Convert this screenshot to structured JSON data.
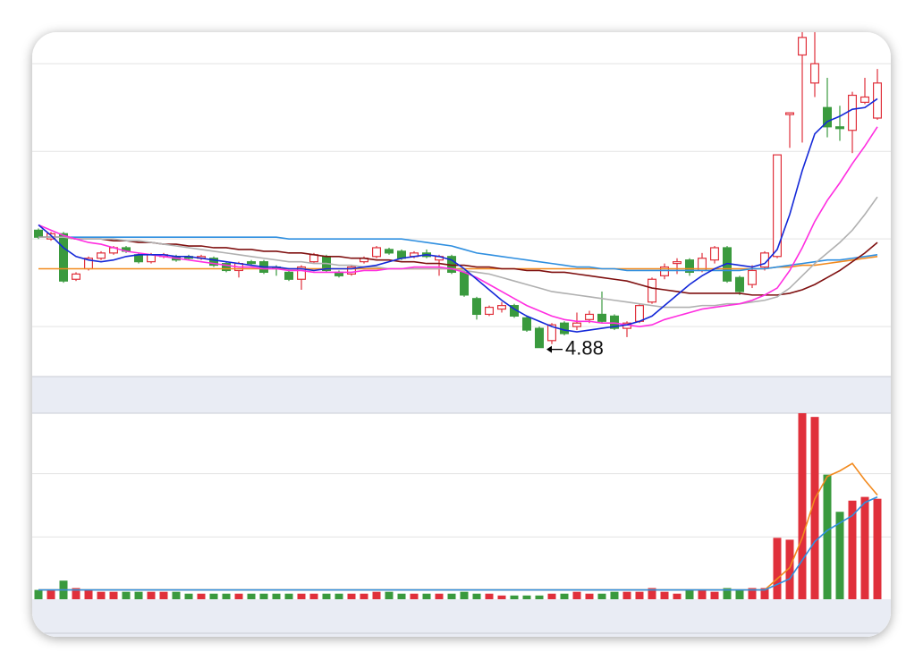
{
  "chart_data": [
    {
      "type": "candlestick",
      "up_color": "#e0303b",
      "down_color": "#3a9a3e",
      "ylim": [
        4.72,
        6.68
      ],
      "yticks": [
        5.0,
        5.5,
        6.0,
        6.5
      ],
      "grid": true,
      "open": [
        5.55,
        5.5,
        5.53,
        5.27,
        5.33,
        5.39,
        5.42,
        5.45,
        5.41,
        5.37,
        5.4,
        5.4,
        5.4,
        5.39,
        5.39,
        5.36,
        5.32,
        5.37,
        5.37,
        5.34,
        5.31,
        5.27,
        5.37,
        5.4,
        5.31,
        5.3,
        5.37,
        5.4,
        5.44,
        5.43,
        5.4,
        5.42,
        5.38,
        5.4,
        5.31,
        5.16,
        5.07,
        5.1,
        5.12,
        5.05,
        4.99,
        4.92,
        5.02,
        5.0,
        5.04,
        5.07,
        5.06,
        4.99,
        5.03,
        5.14,
        5.29,
        5.36,
        5.38,
        5.32,
        5.38,
        5.45,
        5.28,
        5.24,
        5.34,
        5.4,
        6.21,
        6.55,
        6.39,
        6.25,
        6.14,
        6.12,
        6.28,
        6.19
      ],
      "high": [
        5.56,
        5.54,
        5.54,
        5.31,
        5.4,
        5.43,
        5.46,
        5.46,
        5.42,
        5.42,
        5.42,
        5.41,
        5.41,
        5.41,
        5.4,
        5.37,
        5.37,
        5.38,
        5.38,
        5.35,
        5.32,
        5.35,
        5.42,
        5.41,
        5.32,
        5.35,
        5.4,
        5.46,
        5.45,
        5.44,
        5.43,
        5.44,
        5.41,
        5.41,
        5.32,
        5.17,
        5.12,
        5.14,
        5.13,
        5.06,
        5.0,
        5.02,
        5.03,
        5.08,
        5.09,
        5.2,
        5.07,
        5.03,
        5.13,
        5.28,
        5.36,
        5.39,
        5.39,
        5.42,
        5.46,
        5.46,
        5.29,
        5.35,
        5.43,
        5.98,
        6.22,
        6.68,
        6.68,
        6.42,
        6.26,
        6.34,
        6.42,
        6.47
      ],
      "low": [
        5.5,
        5.49,
        5.25,
        5.26,
        5.32,
        5.38,
        5.41,
        5.42,
        5.36,
        5.36,
        5.39,
        5.37,
        5.38,
        5.38,
        5.34,
        5.31,
        5.28,
        5.35,
        5.3,
        5.29,
        5.26,
        5.21,
        5.36,
        5.31,
        5.28,
        5.29,
        5.36,
        5.39,
        5.41,
        5.38,
        5.39,
        5.39,
        5.29,
        5.3,
        5.17,
        5.04,
        5.06,
        5.08,
        5.05,
        4.97,
        4.88,
        4.9,
        4.95,
        4.98,
        5.02,
        5.02,
        4.98,
        4.94,
        5.02,
        5.13,
        5.27,
        5.3,
        5.29,
        5.31,
        5.36,
        5.25,
        5.18,
        5.22,
        5.32,
        5.39,
        6.02,
        6.05,
        6.31,
        6.08,
        6.06,
        5.99,
        6.27,
        6.18
      ],
      "close": [
        5.51,
        5.53,
        5.26,
        5.3,
        5.39,
        5.42,
        5.45,
        5.43,
        5.37,
        5.41,
        5.41,
        5.38,
        5.39,
        5.4,
        5.35,
        5.32,
        5.36,
        5.36,
        5.31,
        5.33,
        5.27,
        5.34,
        5.41,
        5.32,
        5.29,
        5.34,
        5.39,
        5.45,
        5.42,
        5.39,
        5.42,
        5.4,
        5.4,
        5.31,
        5.18,
        5.07,
        5.11,
        5.12,
        5.06,
        4.98,
        4.88,
        5.01,
        4.96,
        5.02,
        5.07,
        5.03,
        4.99,
        5.02,
        5.12,
        5.27,
        5.34,
        5.37,
        5.31,
        5.39,
        5.45,
        5.26,
        5.2,
        5.32,
        5.42,
        5.98,
        6.22,
        6.65,
        6.5,
        6.14,
        6.13,
        6.32,
        6.31,
        6.39
      ],
      "series": [
        {
          "color": "#f28a1e",
          "values": [
            5.33,
            5.33,
            5.33,
            5.33,
            5.33,
            5.33,
            5.33,
            5.33,
            5.33,
            5.33,
            5.33,
            5.33,
            5.33,
            5.33,
            5.33,
            5.33,
            5.33,
            5.33,
            5.33,
            5.33,
            5.33,
            5.33,
            5.33,
            5.33,
            5.33,
            5.33,
            5.33,
            5.33,
            5.33,
            5.33,
            5.33,
            5.33,
            5.33,
            5.33,
            5.33,
            5.33,
            5.33,
            5.33,
            5.33,
            5.33,
            5.33,
            5.33,
            5.33,
            5.33,
            5.33,
            5.33,
            5.33,
            5.33,
            5.33,
            5.33,
            5.33,
            5.33,
            5.33,
            5.33,
            5.33,
            5.33,
            5.33,
            5.33,
            5.33,
            5.34,
            5.34,
            5.35,
            5.35,
            5.36,
            5.37,
            5.38,
            5.39,
            5.4
          ]
        },
        {
          "color": "#2f8fe0",
          "values": [
            5.51,
            5.51,
            5.51,
            5.51,
            5.51,
            5.51,
            5.51,
            5.51,
            5.51,
            5.51,
            5.51,
            5.51,
            5.51,
            5.51,
            5.51,
            5.51,
            5.51,
            5.51,
            5.51,
            5.51,
            5.5,
            5.5,
            5.5,
            5.5,
            5.5,
            5.5,
            5.5,
            5.5,
            5.5,
            5.5,
            5.49,
            5.48,
            5.47,
            5.46,
            5.44,
            5.42,
            5.41,
            5.4,
            5.39,
            5.38,
            5.37,
            5.36,
            5.35,
            5.34,
            5.34,
            5.33,
            5.33,
            5.32,
            5.32,
            5.32,
            5.32,
            5.32,
            5.32,
            5.32,
            5.32,
            5.32,
            5.32,
            5.33,
            5.33,
            5.34,
            5.35,
            5.36,
            5.37,
            5.38,
            5.38,
            5.39,
            5.4,
            5.41
          ]
        },
        {
          "color": "#7f1010",
          "values": [
            5.51,
            5.51,
            5.51,
            5.5,
            5.5,
            5.5,
            5.49,
            5.49,
            5.48,
            5.48,
            5.47,
            5.47,
            5.46,
            5.46,
            5.45,
            5.45,
            5.44,
            5.44,
            5.43,
            5.43,
            5.42,
            5.42,
            5.41,
            5.4,
            5.4,
            5.39,
            5.39,
            5.38,
            5.38,
            5.37,
            5.37,
            5.36,
            5.36,
            5.35,
            5.35,
            5.34,
            5.34,
            5.33,
            5.33,
            5.32,
            5.32,
            5.31,
            5.31,
            5.3,
            5.29,
            5.28,
            5.27,
            5.26,
            5.24,
            5.22,
            5.21,
            5.2,
            5.19,
            5.19,
            5.19,
            5.19,
            5.19,
            5.18,
            5.18,
            5.18,
            5.19,
            5.21,
            5.24,
            5.28,
            5.32,
            5.37,
            5.42,
            5.48
          ]
        },
        {
          "color": "#b0b0b0",
          "values": [
            5.51,
            5.51,
            5.51,
            5.5,
            5.5,
            5.5,
            5.5,
            5.49,
            5.49,
            5.48,
            5.47,
            5.46,
            5.45,
            5.44,
            5.43,
            5.42,
            5.41,
            5.4,
            5.39,
            5.38,
            5.37,
            5.37,
            5.36,
            5.36,
            5.35,
            5.35,
            5.34,
            5.34,
            5.33,
            5.33,
            5.33,
            5.33,
            5.33,
            5.33,
            5.32,
            5.31,
            5.3,
            5.28,
            5.26,
            5.24,
            5.22,
            5.2,
            5.19,
            5.18,
            5.17,
            5.16,
            5.15,
            5.14,
            5.13,
            5.12,
            5.11,
            5.11,
            5.11,
            5.12,
            5.12,
            5.13,
            5.13,
            5.14,
            5.15,
            5.17,
            5.22,
            5.29,
            5.36,
            5.42,
            5.48,
            5.55,
            5.64,
            5.74
          ]
        },
        {
          "color": "#ff2ee0",
          "values": [
            5.58,
            5.55,
            5.52,
            5.5,
            5.48,
            5.47,
            5.45,
            5.43,
            5.42,
            5.41,
            5.4,
            5.39,
            5.38,
            5.37,
            5.36,
            5.35,
            5.34,
            5.34,
            5.33,
            5.33,
            5.32,
            5.32,
            5.31,
            5.31,
            5.31,
            5.31,
            5.32,
            5.32,
            5.33,
            5.33,
            5.34,
            5.34,
            5.34,
            5.33,
            5.31,
            5.28,
            5.24,
            5.2,
            5.16,
            5.12,
            5.09,
            5.06,
            5.04,
            5.03,
            5.03,
            5.02,
            5.02,
            5.01,
            5.0,
            5.01,
            5.04,
            5.06,
            5.08,
            5.1,
            5.11,
            5.12,
            5.13,
            5.15,
            5.18,
            5.22,
            5.32,
            5.45,
            5.6,
            5.72,
            5.82,
            5.93,
            6.03,
            6.14
          ]
        },
        {
          "color": "#1428d8",
          "values": [
            5.58,
            5.52,
            5.45,
            5.4,
            5.38,
            5.37,
            5.38,
            5.4,
            5.41,
            5.41,
            5.41,
            5.4,
            5.4,
            5.39,
            5.38,
            5.37,
            5.36,
            5.35,
            5.34,
            5.34,
            5.33,
            5.33,
            5.32,
            5.33,
            5.33,
            5.33,
            5.34,
            5.35,
            5.37,
            5.39,
            5.4,
            5.41,
            5.4,
            5.38,
            5.33,
            5.27,
            5.21,
            5.15,
            5.1,
            5.06,
            5.03,
            5.0,
            4.98,
            4.97,
            4.98,
            4.99,
            5.0,
            5.01,
            5.03,
            5.06,
            5.12,
            5.18,
            5.24,
            5.29,
            5.33,
            5.36,
            5.35,
            5.34,
            5.36,
            5.44,
            5.64,
            5.89,
            6.1,
            6.17,
            6.2,
            6.24,
            6.25,
            6.3
          ]
        }
      ]
    },
    {
      "type": "bar",
      "ylim": [
        0,
        100
      ],
      "yticks": [
        33.5,
        67.5
      ],
      "grid": true,
      "values": [
        5,
        5,
        10,
        6,
        5,
        4,
        4,
        4,
        4,
        4,
        4,
        4,
        3,
        3,
        3,
        3,
        3,
        3,
        3,
        3,
        3,
        3,
        3,
        3,
        3,
        3,
        3,
        4,
        4,
        3,
        3,
        3,
        3,
        3,
        4,
        3,
        3,
        2,
        2,
        2,
        2,
        3,
        3,
        4,
        3,
        3,
        4,
        4,
        4,
        6,
        4,
        3,
        5,
        5,
        4,
        6,
        5,
        6,
        6,
        33,
        32,
        100,
        98,
        67,
        47,
        53,
        55,
        54
      ],
      "series": [
        {
          "color": "#f28a1e",
          "values": [
            5,
            5,
            5,
            5,
            5,
            5,
            5,
            5,
            5,
            5,
            5,
            5,
            5,
            5,
            5,
            5,
            5,
            5,
            5,
            5,
            5,
            5,
            5,
            5,
            5,
            5,
            5,
            5,
            5,
            5,
            5,
            5,
            5,
            5,
            5,
            5,
            5,
            5,
            5,
            5,
            5,
            5,
            5,
            5,
            5,
            5,
            5,
            5,
            5,
            5,
            5,
            5,
            5,
            5,
            5,
            5,
            5,
            5,
            5,
            11,
            17,
            33,
            54,
            66,
            69,
            73,
            64,
            56
          ]
        },
        {
          "color": "#2f8fe0",
          "values": [
            5,
            5,
            5,
            5,
            5,
            5,
            5,
            5,
            5,
            5,
            5,
            5,
            5,
            5,
            5,
            5,
            5,
            5,
            5,
            5,
            5,
            5,
            5,
            5,
            5,
            5,
            5,
            5,
            5,
            5,
            5,
            5,
            5,
            5,
            5,
            5,
            5,
            5,
            5,
            5,
            5,
            5,
            5,
            5,
            5,
            5,
            5,
            5,
            5,
            5,
            5,
            5,
            5,
            5,
            5,
            5,
            5,
            5,
            5,
            8,
            11,
            21,
            31,
            37,
            41,
            45,
            52,
            55
          ]
        }
      ]
    }
  ]
}
